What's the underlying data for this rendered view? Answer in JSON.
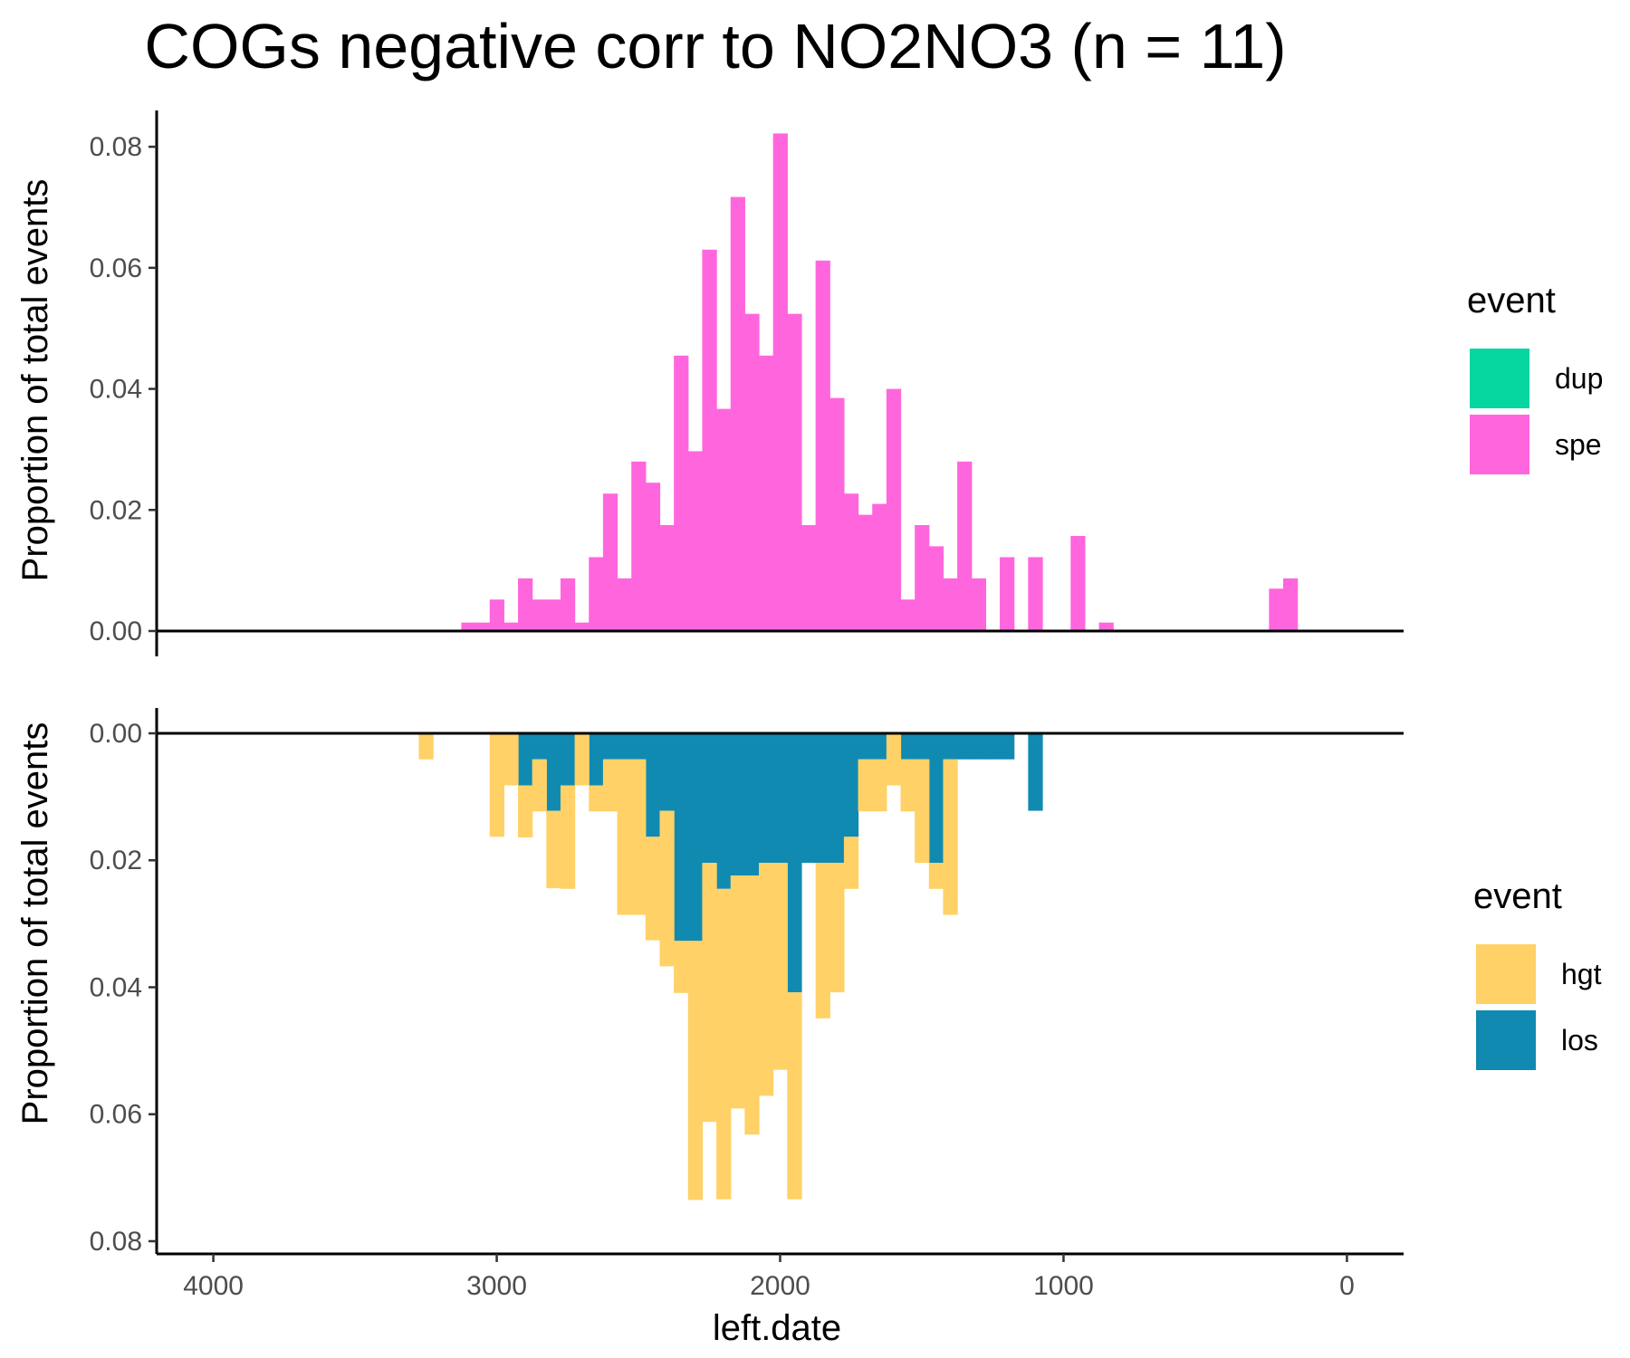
{
  "chart_data": {
    "type": "bar",
    "title": "COGs negative corr to NO2NO3 (n = 11)",
    "xlabel": "left.date",
    "ylabel": "Proportion of total events",
    "x_reversed": true,
    "xlim": [
      4200,
      -200
    ],
    "x_ticks": [
      4000,
      3000,
      2000,
      1000,
      0
    ],
    "x_tick_labels": [
      "4000",
      "3000",
      "2000",
      "1000",
      "0"
    ],
    "bin_width": 50,
    "panels": [
      {
        "id": "top",
        "direction": "up",
        "ylim": [
          0,
          0.086
        ],
        "y_ticks": [
          0,
          0.02,
          0.04,
          0.06,
          0.08
        ],
        "y_tick_labels": [
          "0.00",
          "0.02",
          "0.04",
          "0.06",
          "0.08"
        ],
        "legend": {
          "title": "event",
          "entries": [
            {
              "label": "dup",
              "color": "#06D6A0"
            },
            {
              "label": "spe",
              "color": "#FF66DD"
            }
          ]
        },
        "series": [
          {
            "name": "dup",
            "color": "#06D6A0",
            "x": [],
            "values": []
          },
          {
            "name": "spe",
            "color": "#FF66DD",
            "x": [
              3100,
              3050,
              3000,
              2950,
              2900,
              2850,
              2800,
              2750,
              2700,
              2650,
              2600,
              2550,
              2500,
              2450,
              2400,
              2350,
              2300,
              2250,
              2200,
              2150,
              2100,
              2050,
              2000,
              1950,
              1900,
              1850,
              1800,
              1750,
              1700,
              1650,
              1600,
              1550,
              1500,
              1450,
              1400,
              1350,
              1300,
              1200,
              1100,
              950,
              850,
              250,
              200
            ],
            "values": [
              0.0014,
              0.0014,
              0.0052,
              0.0014,
              0.0087,
              0.0052,
              0.0052,
              0.0087,
              0.0014,
              0.0122,
              0.0227,
              0.0087,
              0.028,
              0.0245,
              0.0175,
              0.0455,
              0.0297,
              0.063,
              0.0367,
              0.0717,
              0.0524,
              0.0455,
              0.0822,
              0.0524,
              0.0175,
              0.0612,
              0.0385,
              0.0227,
              0.0192,
              0.021,
              0.04,
              0.0052,
              0.0175,
              0.014,
              0.0087,
              0.028,
              0.0087,
              0.0122,
              0.0122,
              0.0157,
              0.0014,
              0.007,
              0.0087
            ]
          }
        ]
      },
      {
        "id": "bottom",
        "direction": "down",
        "ylim": [
          0,
          0.082
        ],
        "y_ticks": [
          0,
          0.02,
          0.04,
          0.06,
          0.08
        ],
        "y_tick_labels": [
          "0.00",
          "0.02",
          "0.04",
          "0.06",
          "0.08"
        ],
        "legend": {
          "title": "event",
          "entries": [
            {
              "label": "hgt",
              "color": "#FFD166"
            },
            {
              "label": "los",
              "color": "#118AB2"
            }
          ]
        },
        "series": [
          {
            "name": "los",
            "color": "#118AB2",
            "x": [
              2900,
              2850,
              2800,
              2750,
              2700,
              2650,
              2600,
              2550,
              2500,
              2450,
              2400,
              2350,
              2300,
              2250,
              2200,
              2150,
              2100,
              2050,
              2000,
              1950,
              1900,
              1850,
              1800,
              1750,
              1700,
              1650,
              1600,
              1550,
              1500,
              1450,
              1400,
              1350,
              1300,
              1250,
              1200,
              1150,
              1100
            ],
            "values": [
              0.0082,
              0.0041,
              0.0122,
              0.0082,
              0,
              0.0082,
              0.0041,
              0.0041,
              0.0041,
              0.0163,
              0.0122,
              0.0327,
              0.0327,
              0.0204,
              0.0245,
              0.0224,
              0.0224,
              0.0204,
              0.0204,
              0.0408,
              0.0204,
              0.0204,
              0.0204,
              0.0163,
              0.0041,
              0.0041,
              0,
              0.0041,
              0.0041,
              0.0204,
              0.0041,
              0.0041,
              0.0041,
              0.0041,
              0.0041,
              0,
              0.0122
            ]
          },
          {
            "name": "hgt",
            "color": "#FFD166",
            "x": [
              3250,
              3000,
              2950,
              2900,
              2850,
              2800,
              2750,
              2700,
              2650,
              2600,
              2550,
              2500,
              2450,
              2400,
              2350,
              2300,
              2250,
              2200,
              2150,
              2100,
              2050,
              2000,
              1950,
              1900,
              1850,
              1800,
              1750,
              1700,
              1650,
              1600,
              1550,
              1500,
              1450,
              1400
            ],
            "values": [
              0.0041,
              0.0163,
              0.0082,
              0.0082,
              0.0082,
              0.0122,
              0.0163,
              0.0082,
              0.0041,
              0.0082,
              0.0245,
              0.0245,
              0.0163,
              0.0245,
              0.0082,
              0.0408,
              0.0408,
              0.0489,
              0.0367,
              0.0408,
              0.0367,
              0.0326,
              0.0326,
              0,
              0.0245,
              0.0204,
              0.0082,
              0.0082,
              0.0082,
              0.0082,
              0.0082,
              0.0163,
              0.0041,
              0.0245
            ]
          }
        ]
      }
    ]
  }
}
